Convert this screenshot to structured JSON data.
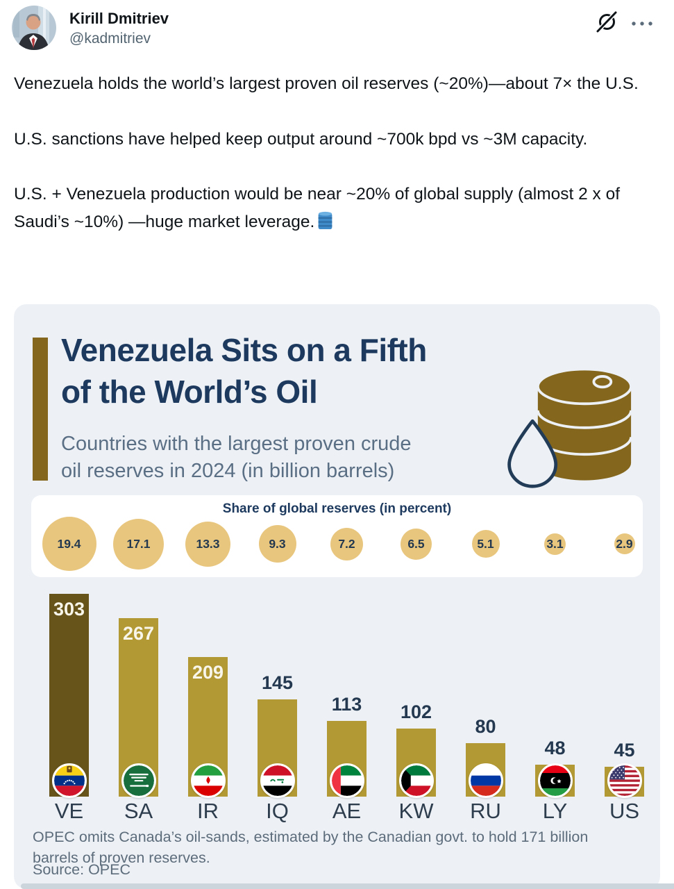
{
  "tweet": {
    "author_name": "Kirill Dmitriev",
    "author_handle": "@kadmitriev",
    "paragraphs": [
      "Venezuela holds the world’s largest proven oil reserves (~20%)—about 7× the U.S.",
      "U.S. sanctions have helped keep output around ~700k bpd vs ~3M capacity.",
      "U.S. + Venezuela production would be near ~20% of global supply (almost 2 x of Saudi’s ~10%) —huge market leverage."
    ]
  },
  "infographic": {
    "title_line1": "Venezuela Sits on a Fifth",
    "title_line2": "of the World’s Oil",
    "subtitle_line1": "Countries with the largest proven crude",
    "subtitle_line2": "oil reserves in 2024 (in billion barrels)",
    "share_title": "Share of global reserves (in percent)",
    "footnote": "OPEC omits Canada’s oil-sands, estimated by the Canadian govt. to hold 171 billion barrels of proven reserves.",
    "source": "Source: OPEC"
  },
  "chart_data": {
    "type": "bar",
    "title": "Venezuela Sits on a Fifth of the World’s Oil",
    "subtitle": "Countries with the largest proven crude oil reserves in 2024 (in billion barrels)",
    "categories": [
      "VE",
      "SA",
      "IR",
      "IQ",
      "AE",
      "KW",
      "RU",
      "LY",
      "US"
    ],
    "series": [
      {
        "name": "Proven crude oil reserves 2024 (billion barrels)",
        "values": [
          303,
          267,
          209,
          145,
          113,
          102,
          80,
          48,
          45
        ]
      },
      {
        "name": "Share of global reserves (percent)",
        "values": [
          19.4,
          17.1,
          13.3,
          9.3,
          7.2,
          6.5,
          5.1,
          3.1,
          2.9
        ]
      }
    ],
    "ylabel": "billion barrels",
    "ylim": [
      0,
      303
    ],
    "grid": false,
    "legend_position": "none",
    "highlight_category": "VE",
    "labels_inside_bars": [
      "VE",
      "SA",
      "IR"
    ]
  },
  "colors": {
    "card_bg": "#edf1f6",
    "navy": "#1d3a5e",
    "subtitle_gray": "#5a6e84",
    "gold_dark": "#84671c",
    "bar_gold": "#b39933",
    "bar_highlight": "#67541a",
    "circle_tan": "#e8c67e",
    "footnote_gray": "#5d6c7b",
    "handle_gray": "#536471",
    "text_black": "#0f1419"
  }
}
